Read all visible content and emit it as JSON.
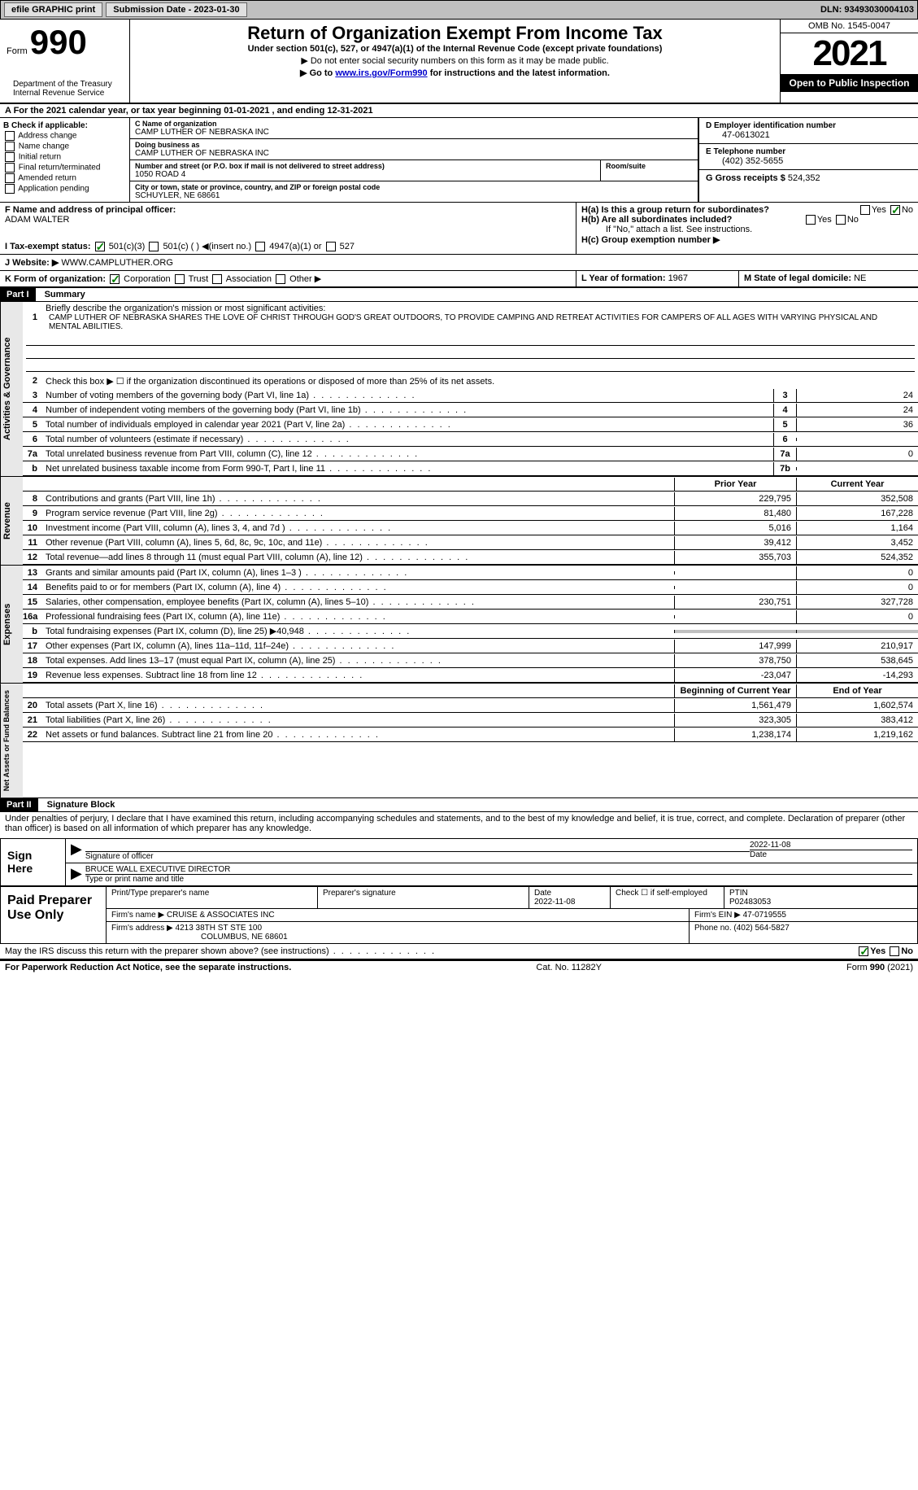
{
  "topbar": {
    "efile_label": "efile GRAPHIC print",
    "submission_label": "Submission Date - 2023-01-30",
    "dln_label": "DLN: 93493030004103"
  },
  "header": {
    "form_prefix": "Form",
    "form_number": "990",
    "dept": "Department of the Treasury\nInternal Revenue Service",
    "title": "Return of Organization Exempt From Income Tax",
    "subtitle": "Under section 501(c), 527, or 4947(a)(1) of the Internal Revenue Code (except private foundations)",
    "instruction1": "▶ Do not enter social security numbers on this form as it may be made public.",
    "instruction2_pre": "▶ Go to ",
    "instruction2_link": "www.irs.gov/Form990",
    "instruction2_post": " for instructions and the latest information.",
    "omb": "OMB No. 1545-0047",
    "year": "2021",
    "inspection": "Open to Public Inspection"
  },
  "row_a": "A For the 2021 calendar year, or tax year beginning 01-01-2021   , and ending 12-31-2021",
  "section_b": {
    "title": "B Check if applicable:",
    "options": [
      "Address change",
      "Name change",
      "Initial return",
      "Final return/terminated",
      "Amended return",
      "Application pending"
    ]
  },
  "section_c": {
    "name_label": "C Name of organization",
    "name": "CAMP LUTHER OF NEBRASKA INC",
    "dba_label": "Doing business as",
    "dba": "CAMP LUTHER OF NEBRASKA INC",
    "street_label": "Number and street (or P.O. box if mail is not delivered to street address)",
    "room_label": "Room/suite",
    "street": "1050 ROAD 4",
    "city_label": "City or town, state or province, country, and ZIP or foreign postal code",
    "city": "SCHUYLER, NE  68661"
  },
  "section_d": {
    "ein_label": "D Employer identification number",
    "ein": "47-0613021",
    "phone_label": "E Telephone number",
    "phone": "(402) 352-5655",
    "receipts_label": "G Gross receipts $ ",
    "receipts": "524,352"
  },
  "section_f": {
    "label": "F  Name and address of principal officer:",
    "name": "ADAM WALTER"
  },
  "section_h": {
    "ha_label": "H(a)  Is this a group return for subordinates?",
    "hb_label": "H(b)  Are all subordinates included?",
    "hb_note": "If \"No,\" attach a list. See instructions.",
    "hc_label": "H(c)  Group exemption number ▶",
    "yes": "Yes",
    "no": "No"
  },
  "section_i": {
    "label": "I     Tax-exempt status:",
    "opt1": "501(c)(3)",
    "opt2": "501(c) (  ) ◀(insert no.)",
    "opt3": "4947(a)(1) or",
    "opt4": "527"
  },
  "section_j": {
    "label": "J    Website: ▶",
    "value": " WWW.CAMPLUTHER.ORG"
  },
  "section_k": {
    "label": "K Form of organization:",
    "opts": [
      "Corporation",
      "Trust",
      "Association",
      "Other ▶"
    ]
  },
  "section_l": {
    "label": "L Year of formation: ",
    "value": "1967"
  },
  "section_m": {
    "label": "M State of legal domicile: ",
    "value": "NE"
  },
  "part1": {
    "header": "Part I",
    "title": "Summary",
    "line1_label": "Briefly describe the organization's mission or most significant activities:",
    "mission": "CAMP LUTHER OF NEBRASKA SHARES THE LOVE OF CHRIST THROUGH GOD'S GREAT OUTDOORS, TO PROVIDE CAMPING AND RETREAT ACTIVITIES FOR CAMPERS OF ALL AGES WITH VARYING PHYSICAL AND MENTAL ABILITIES.",
    "line2": "Check this box ▶ ☐ if the organization discontinued its operations or disposed of more than 25% of its net assets.",
    "sidebars": [
      "Activities & Governance",
      "Revenue",
      "Expenses",
      "Net Assets or Fund Balances"
    ],
    "gov_rows": [
      {
        "n": "3",
        "d": "Number of voting members of the governing body (Part VI, line 1a)",
        "b": "3",
        "v": "24"
      },
      {
        "n": "4",
        "d": "Number of independent voting members of the governing body (Part VI, line 1b)",
        "b": "4",
        "v": "24"
      },
      {
        "n": "5",
        "d": "Total number of individuals employed in calendar year 2021 (Part V, line 2a)",
        "b": "5",
        "v": "36"
      },
      {
        "n": "6",
        "d": "Total number of volunteers (estimate if necessary)",
        "b": "6",
        "v": ""
      },
      {
        "n": "7a",
        "d": "Total unrelated business revenue from Part VIII, column (C), line 12",
        "b": "7a",
        "v": "0"
      },
      {
        "n": "b",
        "d": "Net unrelated business taxable income from Form 990-T, Part I, line 11",
        "b": "7b",
        "v": ""
      }
    ],
    "col_headers": {
      "prior": "Prior Year",
      "current": "Current Year"
    },
    "rev_rows": [
      {
        "n": "8",
        "d": "Contributions and grants (Part VIII, line 1h)",
        "p": "229,795",
        "c": "352,508"
      },
      {
        "n": "9",
        "d": "Program service revenue (Part VIII, line 2g)",
        "p": "81,480",
        "c": "167,228"
      },
      {
        "n": "10",
        "d": "Investment income (Part VIII, column (A), lines 3, 4, and 7d )",
        "p": "5,016",
        "c": "1,164"
      },
      {
        "n": "11",
        "d": "Other revenue (Part VIII, column (A), lines 5, 6d, 8c, 9c, 10c, and 11e)",
        "p": "39,412",
        "c": "3,452"
      },
      {
        "n": "12",
        "d": "Total revenue—add lines 8 through 11 (must equal Part VIII, column (A), line 12)",
        "p": "355,703",
        "c": "524,352"
      }
    ],
    "exp_rows": [
      {
        "n": "13",
        "d": "Grants and similar amounts paid (Part IX, column (A), lines 1–3 )",
        "p": "",
        "c": "0"
      },
      {
        "n": "14",
        "d": "Benefits paid to or for members (Part IX, column (A), line 4)",
        "p": "",
        "c": "0"
      },
      {
        "n": "15",
        "d": "Salaries, other compensation, employee benefits (Part IX, column (A), lines 5–10)",
        "p": "230,751",
        "c": "327,728"
      },
      {
        "n": "16a",
        "d": "Professional fundraising fees (Part IX, column (A), line 11e)",
        "p": "",
        "c": "0"
      },
      {
        "n": "b",
        "d": "Total fundraising expenses (Part IX, column (D), line 25) ▶40,948",
        "p": "GRAY",
        "c": "GRAY"
      },
      {
        "n": "17",
        "d": "Other expenses (Part IX, column (A), lines 11a–11d, 11f–24e)",
        "p": "147,999",
        "c": "210,917"
      },
      {
        "n": "18",
        "d": "Total expenses. Add lines 13–17 (must equal Part IX, column (A), line 25)",
        "p": "378,750",
        "c": "538,645"
      },
      {
        "n": "19",
        "d": "Revenue less expenses. Subtract line 18 from line 12",
        "p": "-23,047",
        "c": "-14,293"
      }
    ],
    "net_headers": {
      "begin": "Beginning of Current Year",
      "end": "End of Year"
    },
    "net_rows": [
      {
        "n": "20",
        "d": "Total assets (Part X, line 16)",
        "p": "1,561,479",
        "c": "1,602,574"
      },
      {
        "n": "21",
        "d": "Total liabilities (Part X, line 26)",
        "p": "323,305",
        "c": "383,412"
      },
      {
        "n": "22",
        "d": "Net assets or fund balances. Subtract line 21 from line 20",
        "p": "1,238,174",
        "c": "1,219,162"
      }
    ]
  },
  "part2": {
    "header": "Part II",
    "title": "Signature Block",
    "declaration": "Under penalties of perjury, I declare that I have examined this return, including accompanying schedules and statements, and to the best of my knowledge and belief, it is true, correct, and complete. Declaration of preparer (other than officer) is based on all information of which preparer has any knowledge.",
    "sign_here": "Sign Here",
    "sig_officer_label": "Signature of officer",
    "date_label": "Date",
    "sig_date": "2022-11-08",
    "name_title": "BRUCE WALL  EXECUTIVE DIRECTOR",
    "name_title_label": "Type or print name and title",
    "paid_label": "Paid Preparer Use Only",
    "prep_name_label": "Print/Type preparer's name",
    "prep_sig_label": "Preparer's signature",
    "prep_date_label": "Date",
    "prep_date": "2022-11-08",
    "check_self": "Check ☐ if self-employed",
    "ptin_label": "PTIN",
    "ptin": "P02483053",
    "firm_name_label": "Firm's name    ▶ ",
    "firm_name": "CRUISE & ASSOCIATES INC",
    "firm_ein_label": "Firm's EIN ▶ ",
    "firm_ein": "47-0719555",
    "firm_addr_label": "Firm's address ▶ ",
    "firm_addr": "4213 38TH ST STE 100",
    "firm_city": "COLUMBUS, NE  68601",
    "firm_phone_label": "Phone no. ",
    "firm_phone": "(402) 564-5827",
    "discuss": "May the IRS discuss this return with the preparer shown above? (see instructions)",
    "yes": "Yes",
    "no": "No"
  },
  "footer": {
    "paperwork": "For Paperwork Reduction Act Notice, see the separate instructions.",
    "catalog": "Cat. No. 11282Y",
    "form": "Form 990 (2021)"
  }
}
